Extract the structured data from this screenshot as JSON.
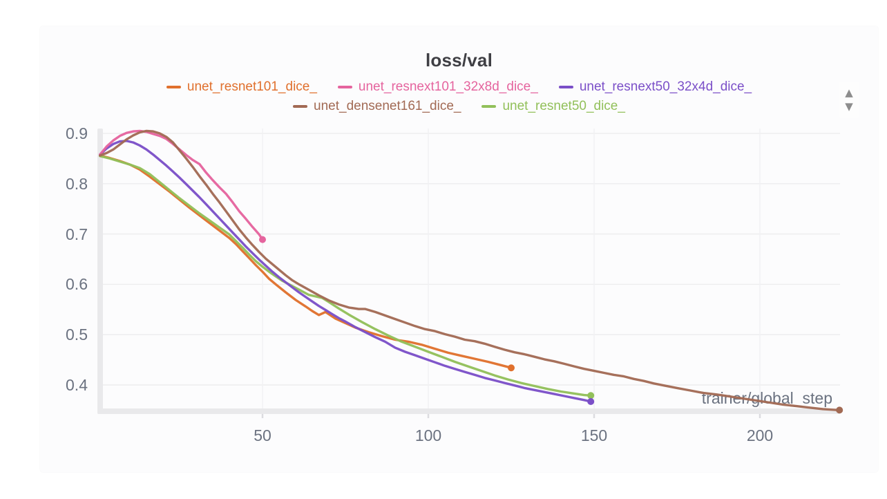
{
  "controls": {
    "scroll_up": "▲",
    "scroll_down": "▼"
  },
  "theme": {
    "panel_bg": "#fcfcfd",
    "grid_line": "#ededee",
    "axis_bar": "#e9e9eb",
    "tick_stub": "#dcdce0",
    "tick_text": "#6b7280",
    "title_text": "#3f3f44"
  },
  "chart_data": {
    "type": "line",
    "title": "loss/val",
    "xlabel": "trainer/global_step",
    "ylabel": "",
    "xlim": [
      0,
      230
    ],
    "ylim": [
      0.34,
      0.92
    ],
    "x_ticks": [
      50,
      100,
      150,
      200
    ],
    "y_ticks": [
      0.9,
      0.8,
      0.7,
      0.6,
      0.5,
      0.4
    ],
    "grid": true,
    "legend_position": "top",
    "legend_rows": [
      [
        0,
        1,
        2
      ],
      [
        3,
        4
      ]
    ],
    "draw_order": [
      0,
      4,
      2,
      1,
      3
    ],
    "series": [
      {
        "name": "unet_resnet101_dice_",
        "color": "#E0702D",
        "end_marker": true,
        "points": [
          [
            1,
            0.856
          ],
          [
            4,
            0.851
          ],
          [
            7,
            0.845
          ],
          [
            10,
            0.838
          ],
          [
            13,
            0.828
          ],
          [
            16,
            0.814
          ],
          [
            19,
            0.799
          ],
          [
            22,
            0.784
          ],
          [
            25,
            0.768
          ],
          [
            28,
            0.752
          ],
          [
            31,
            0.737
          ],
          [
            34,
            0.722
          ],
          [
            37,
            0.707
          ],
          [
            40,
            0.692
          ],
          [
            42,
            0.68
          ],
          [
            44,
            0.666
          ],
          [
            46,
            0.652
          ],
          [
            48,
            0.638
          ],
          [
            50,
            0.625
          ],
          [
            52,
            0.611
          ],
          [
            54,
            0.6
          ],
          [
            57,
            0.584
          ],
          [
            60,
            0.569
          ],
          [
            63,
            0.556
          ],
          [
            65,
            0.547
          ],
          [
            67,
            0.539
          ],
          [
            69,
            0.545
          ],
          [
            72,
            0.532
          ],
          [
            75,
            0.523
          ],
          [
            78,
            0.514
          ],
          [
            82,
            0.505
          ],
          [
            86,
            0.497
          ],
          [
            90,
            0.49
          ],
          [
            94,
            0.486
          ],
          [
            98,
            0.48
          ],
          [
            102,
            0.472
          ],
          [
            106,
            0.464
          ],
          [
            110,
            0.458
          ],
          [
            114,
            0.452
          ],
          [
            118,
            0.446
          ],
          [
            121,
            0.441
          ],
          [
            125,
            0.434
          ]
        ]
      },
      {
        "name": "unet_resnext101_32x8d_dice_",
        "color": "#E5649E",
        "end_marker": true,
        "points": [
          [
            1,
            0.858
          ],
          [
            3,
            0.874
          ],
          [
            5,
            0.886
          ],
          [
            7,
            0.895
          ],
          [
            9,
            0.901
          ],
          [
            11,
            0.904
          ],
          [
            13,
            0.905
          ],
          [
            15,
            0.903
          ],
          [
            17,
            0.899
          ],
          [
            19,
            0.895
          ],
          [
            21,
            0.889
          ],
          [
            23,
            0.879
          ],
          [
            25,
            0.868
          ],
          [
            27,
            0.857
          ],
          [
            29,
            0.847
          ],
          [
            31,
            0.839
          ],
          [
            33,
            0.822
          ],
          [
            35,
            0.807
          ],
          [
            37,
            0.793
          ],
          [
            39,
            0.78
          ],
          [
            41,
            0.763
          ],
          [
            43,
            0.745
          ],
          [
            45,
            0.73
          ],
          [
            47,
            0.714
          ],
          [
            49,
            0.699
          ],
          [
            50,
            0.689
          ]
        ]
      },
      {
        "name": "unet_resnext50_32x4d_dice_",
        "color": "#7B4FC8",
        "end_marker": true,
        "points": [
          [
            1,
            0.858
          ],
          [
            3,
            0.87
          ],
          [
            5,
            0.879
          ],
          [
            7,
            0.884
          ],
          [
            9,
            0.885
          ],
          [
            11,
            0.882
          ],
          [
            13,
            0.876
          ],
          [
            15,
            0.868
          ],
          [
            17,
            0.858
          ],
          [
            19,
            0.847
          ],
          [
            21,
            0.836
          ],
          [
            23,
            0.824
          ],
          [
            25,
            0.812
          ],
          [
            27,
            0.799
          ],
          [
            29,
            0.786
          ],
          [
            31,
            0.773
          ],
          [
            33,
            0.759
          ],
          [
            35,
            0.745
          ],
          [
            37,
            0.731
          ],
          [
            39,
            0.717
          ],
          [
            41,
            0.703
          ],
          [
            43,
            0.689
          ],
          [
            45,
            0.675
          ],
          [
            47,
            0.662
          ],
          [
            49,
            0.649
          ],
          [
            51,
            0.637
          ],
          [
            53,
            0.625
          ],
          [
            55,
            0.614
          ],
          [
            57,
            0.604
          ],
          [
            59,
            0.594
          ],
          [
            61,
            0.584
          ],
          [
            63,
            0.575
          ],
          [
            65,
            0.566
          ],
          [
            67,
            0.557
          ],
          [
            69,
            0.549
          ],
          [
            71,
            0.541
          ],
          [
            73,
            0.533
          ],
          [
            75,
            0.526
          ],
          [
            78,
            0.515
          ],
          [
            81,
            0.505
          ],
          [
            84,
            0.495
          ],
          [
            87,
            0.486
          ],
          [
            90,
            0.474
          ],
          [
            93,
            0.466
          ],
          [
            96,
            0.459
          ],
          [
            99,
            0.452
          ],
          [
            102,
            0.445
          ],
          [
            105,
            0.438
          ],
          [
            108,
            0.432
          ],
          [
            111,
            0.426
          ],
          [
            114,
            0.42
          ],
          [
            117,
            0.414
          ],
          [
            120,
            0.409
          ],
          [
            123,
            0.404
          ],
          [
            126,
            0.399
          ],
          [
            129,
            0.394
          ],
          [
            132,
            0.39
          ],
          [
            135,
            0.386
          ],
          [
            138,
            0.382
          ],
          [
            141,
            0.378
          ],
          [
            144,
            0.374
          ],
          [
            147,
            0.37
          ],
          [
            149,
            0.367
          ]
        ]
      },
      {
        "name": "unet_densenet161_dice_",
        "color": "#A26A54",
        "end_marker": true,
        "points": [
          [
            1,
            0.856
          ],
          [
            3,
            0.861
          ],
          [
            5,
            0.868
          ],
          [
            7,
            0.878
          ],
          [
            9,
            0.888
          ],
          [
            11,
            0.896
          ],
          [
            13,
            0.902
          ],
          [
            15,
            0.905
          ],
          [
            17,
            0.904
          ],
          [
            19,
            0.9
          ],
          [
            21,
            0.893
          ],
          [
            23,
            0.882
          ],
          [
            25,
            0.866
          ],
          [
            27,
            0.85
          ],
          [
            29,
            0.833
          ],
          [
            31,
            0.815
          ],
          [
            33,
            0.798
          ],
          [
            35,
            0.78
          ],
          [
            37,
            0.763
          ],
          [
            39,
            0.745
          ],
          [
            41,
            0.727
          ],
          [
            43,
            0.709
          ],
          [
            45,
            0.693
          ],
          [
            47,
            0.678
          ],
          [
            49,
            0.664
          ],
          [
            51,
            0.651
          ],
          [
            53,
            0.64
          ],
          [
            55,
            0.629
          ],
          [
            57,
            0.618
          ],
          [
            59,
            0.608
          ],
          [
            61,
            0.6
          ],
          [
            64,
            0.589
          ],
          [
            67,
            0.578
          ],
          [
            70,
            0.568
          ],
          [
            73,
            0.56
          ],
          [
            76,
            0.554
          ],
          [
            79,
            0.551
          ],
          [
            81,
            0.551
          ],
          [
            84,
            0.545
          ],
          [
            87,
            0.538
          ],
          [
            90,
            0.531
          ],
          [
            93,
            0.524
          ],
          [
            96,
            0.517
          ],
          [
            99,
            0.511
          ],
          [
            102,
            0.507
          ],
          [
            105,
            0.501
          ],
          [
            108,
            0.496
          ],
          [
            111,
            0.49
          ],
          [
            114,
            0.487
          ],
          [
            117,
            0.482
          ],
          [
            120,
            0.476
          ],
          [
            123,
            0.47
          ],
          [
            126,
            0.465
          ],
          [
            129,
            0.461
          ],
          [
            132,
            0.456
          ],
          [
            135,
            0.451
          ],
          [
            138,
            0.447
          ],
          [
            141,
            0.442
          ],
          [
            144,
            0.437
          ],
          [
            147,
            0.432
          ],
          [
            150,
            0.428
          ],
          [
            153,
            0.424
          ],
          [
            156,
            0.42
          ],
          [
            159,
            0.417
          ],
          [
            162,
            0.412
          ],
          [
            165,
            0.408
          ],
          [
            168,
            0.403
          ],
          [
            171,
            0.399
          ],
          [
            175,
            0.394
          ],
          [
            179,
            0.389
          ],
          [
            183,
            0.384
          ],
          [
            187,
            0.381
          ],
          [
            191,
            0.377
          ],
          [
            195,
            0.373
          ],
          [
            199,
            0.369
          ],
          [
            203,
            0.365
          ],
          [
            207,
            0.361
          ],
          [
            211,
            0.358
          ],
          [
            215,
            0.355
          ],
          [
            219,
            0.352
          ],
          [
            224,
            0.35
          ]
        ]
      },
      {
        "name": "unet_resnet50_dice_",
        "color": "#92C05A",
        "end_marker": true,
        "points": [
          [
            1,
            0.855
          ],
          [
            4,
            0.85
          ],
          [
            7,
            0.844
          ],
          [
            10,
            0.838
          ],
          [
            13,
            0.831
          ],
          [
            16,
            0.819
          ],
          [
            19,
            0.803
          ],
          [
            22,
            0.787
          ],
          [
            25,
            0.771
          ],
          [
            28,
            0.756
          ],
          [
            31,
            0.741
          ],
          [
            34,
            0.727
          ],
          [
            37,
            0.713
          ],
          [
            40,
            0.699
          ],
          [
            42,
            0.686
          ],
          [
            44,
            0.673
          ],
          [
            46,
            0.659
          ],
          [
            48,
            0.646
          ],
          [
            50,
            0.635
          ],
          [
            52,
            0.625
          ],
          [
            54,
            0.616
          ],
          [
            56,
            0.607
          ],
          [
            58,
            0.6
          ],
          [
            60,
            0.593
          ],
          [
            62,
            0.586
          ],
          [
            64,
            0.579
          ],
          [
            66,
            0.576
          ],
          [
            68,
            0.573
          ],
          [
            70,
            0.565
          ],
          [
            73,
            0.552
          ],
          [
            76,
            0.54
          ],
          [
            80,
            0.525
          ],
          [
            84,
            0.511
          ],
          [
            88,
            0.498
          ],
          [
            92,
            0.486
          ],
          [
            96,
            0.476
          ],
          [
            100,
            0.466
          ],
          [
            104,
            0.456
          ],
          [
            108,
            0.446
          ],
          [
            112,
            0.437
          ],
          [
            116,
            0.428
          ],
          [
            120,
            0.419
          ],
          [
            124,
            0.411
          ],
          [
            128,
            0.404
          ],
          [
            132,
            0.398
          ],
          [
            136,
            0.392
          ],
          [
            140,
            0.387
          ],
          [
            144,
            0.383
          ],
          [
            147,
            0.38
          ],
          [
            149,
            0.379
          ]
        ]
      }
    ]
  }
}
